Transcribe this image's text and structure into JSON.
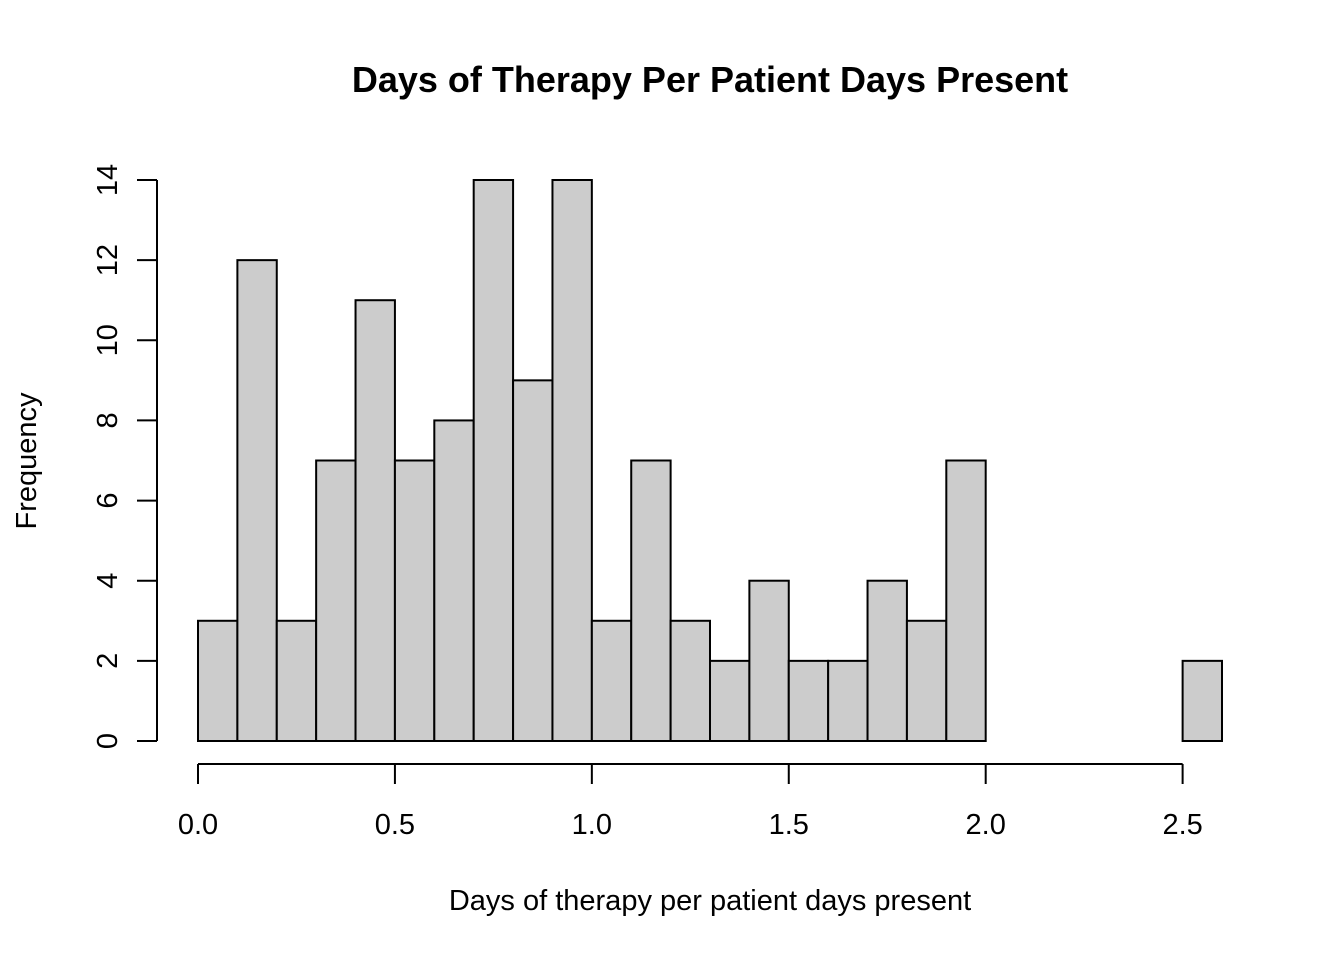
{
  "chart_data": {
    "type": "bar",
    "title": "Days of Therapy Per Patient Days Present",
    "xlabel": "Days of therapy per patient days present",
    "ylabel": "Frequency",
    "bin_width": 0.1,
    "bins_start": 0.0,
    "values": [
      3,
      12,
      3,
      7,
      11,
      7,
      8,
      14,
      9,
      14,
      3,
      7,
      3,
      2,
      4,
      2,
      2,
      4,
      3,
      7,
      0,
      0,
      0,
      0,
      0,
      2
    ],
    "xlim": [
      0.0,
      2.6
    ],
    "ylim": [
      0,
      14
    ],
    "x_ticks": [
      "0.0",
      "0.5",
      "1.0",
      "1.5",
      "2.0",
      "2.5"
    ],
    "x_tick_values": [
      0.0,
      0.5,
      1.0,
      1.5,
      2.0,
      2.5
    ],
    "y_ticks": [
      "0",
      "2",
      "4",
      "6",
      "8",
      "10",
      "12",
      "14"
    ],
    "y_tick_values": [
      0,
      2,
      4,
      6,
      8,
      10,
      12,
      14
    ],
    "grid": false,
    "bar_color": "#cccccc",
    "edge_color": "#000000"
  }
}
